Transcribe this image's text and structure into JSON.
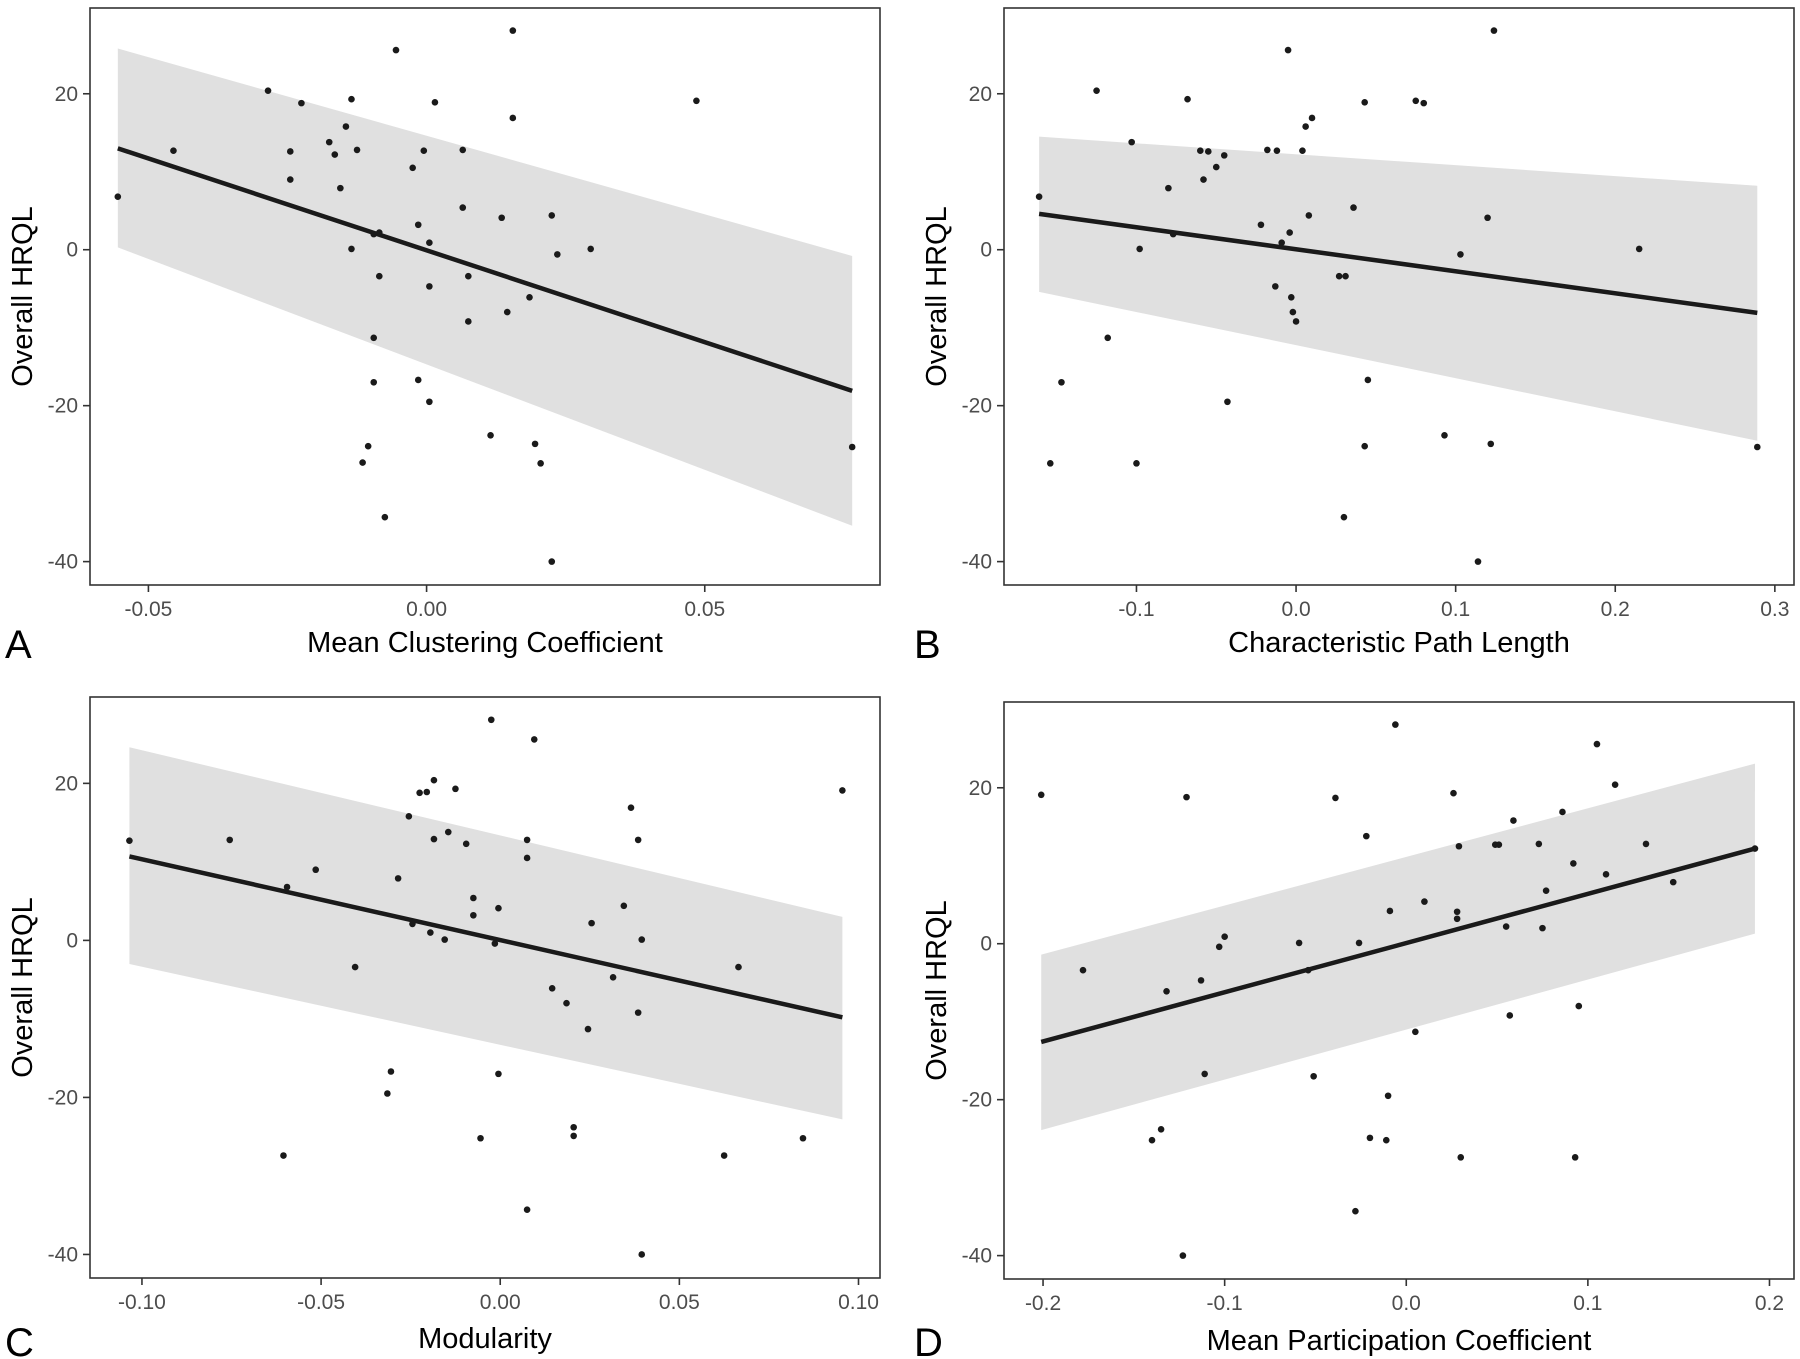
{
  "chart_data": [
    {
      "type": "scatter",
      "panel": "A",
      "xlabel": "Mean Clustering Coefficient",
      "ylabel": "Overall HRQL",
      "xlim": [
        -0.0605,
        0.0815
      ],
      "ylim": [
        -43,
        31
      ],
      "xticks": [
        -0.05,
        0.0,
        0.05
      ],
      "xtick_labels": [
        "-0.05",
        "0.00",
        "0.05"
      ],
      "yticks": [
        -40,
        -20,
        0,
        20
      ],
      "ytick_labels": [
        "-40",
        "-20",
        "0",
        "20"
      ],
      "grid": false,
      "fit": {
        "x": [
          -0.0555,
          0.0765
        ],
        "y": [
          13.0,
          -18.1
        ],
        "ci_lower": [
          0.3,
          -35.4
        ],
        "ci_upper": [
          25.8,
          -0.8
        ]
      },
      "points": [
        [
          -0.0555,
          6.8
        ],
        [
          -0.0455,
          12.7
        ],
        [
          -0.0285,
          20.4
        ],
        [
          -0.0245,
          9.0
        ],
        [
          -0.0245,
          12.6
        ],
        [
          -0.0225,
          18.8
        ],
        [
          -0.0175,
          13.8
        ],
        [
          -0.0165,
          12.2
        ],
        [
          -0.0155,
          7.9
        ],
        [
          -0.0145,
          15.8
        ],
        [
          -0.0135,
          19.3
        ],
        [
          -0.0135,
          0.1
        ],
        [
          -0.0125,
          12.8
        ],
        [
          -0.0115,
          -27.3
        ],
        [
          -0.0105,
          -25.2
        ],
        [
          -0.0095,
          -17.0
        ],
        [
          -0.0095,
          -11.3
        ],
        [
          -0.0095,
          2.0
        ],
        [
          -0.0085,
          -3.4
        ],
        [
          -0.0085,
          2.2
        ],
        [
          -0.0075,
          -34.3
        ],
        [
          -0.0055,
          25.6
        ],
        [
          -0.0025,
          10.5
        ],
        [
          -0.0015,
          3.2
        ],
        [
          -0.0015,
          -16.7
        ],
        [
          -0.0005,
          12.7
        ],
        [
          0.0005,
          -19.5
        ],
        [
          0.0005,
          0.9
        ],
        [
          0.0015,
          18.9
        ],
        [
          0.0005,
          -4.7
        ],
        [
          0.0065,
          12.8
        ],
        [
          0.0065,
          5.4
        ],
        [
          0.0075,
          -9.2
        ],
        [
          0.0075,
          -3.4
        ],
        [
          0.0115,
          -23.8
        ],
        [
          0.0135,
          4.1
        ],
        [
          0.0145,
          -8.0
        ],
        [
          0.0155,
          16.9
        ],
        [
          0.0155,
          28.1
        ],
        [
          0.0185,
          -6.1
        ],
        [
          0.0195,
          -24.9
        ],
        [
          0.0205,
          -27.4
        ],
        [
          0.0225,
          4.4
        ],
        [
          0.0225,
          -40.0
        ],
        [
          0.0235,
          -0.6
        ],
        [
          0.0295,
          0.1
        ],
        [
          0.0485,
          19.1
        ],
        [
          0.0765,
          -25.3
        ]
      ]
    },
    {
      "type": "scatter",
      "panel": "B",
      "xlabel": "Characteristic Path Length",
      "ylabel": "Overall HRQL",
      "xlim": [
        -0.183,
        0.312
      ],
      "ylim": [
        -43,
        31
      ],
      "xticks": [
        -0.1,
        0.0,
        0.1,
        0.2,
        0.3
      ],
      "xtick_labels": [
        "-0.1",
        "0.0",
        "0.1",
        "0.2",
        "0.3"
      ],
      "yticks": [
        -40,
        -20,
        0,
        20
      ],
      "ytick_labels": [
        "-40",
        "-20",
        "0",
        "20"
      ],
      "grid": false,
      "fit": {
        "x": [
          -0.161,
          0.289
        ],
        "y": [
          4.6,
          -8.1
        ],
        "ci_lower": [
          -5.4,
          -24.5
        ],
        "ci_upper": [
          14.5,
          8.2
        ]
      },
      "points": [
        [
          -0.161,
          6.8
        ],
        [
          -0.154,
          -27.4
        ],
        [
          -0.147,
          -17.0
        ],
        [
          -0.125,
          20.4
        ],
        [
          -0.118,
          -11.3
        ],
        [
          -0.103,
          13.8
        ],
        [
          -0.1,
          -27.4
        ],
        [
          -0.098,
          0.1
        ],
        [
          -0.08,
          7.9
        ],
        [
          -0.077,
          2.0
        ],
        [
          -0.068,
          19.3
        ],
        [
          -0.06,
          12.7
        ],
        [
          -0.058,
          9.0
        ],
        [
          -0.055,
          12.6
        ],
        [
          -0.05,
          10.6
        ],
        [
          -0.045,
          12.1
        ],
        [
          -0.043,
          -19.5
        ],
        [
          -0.022,
          3.2
        ],
        [
          -0.018,
          12.8
        ],
        [
          -0.013,
          -4.7
        ],
        [
          -0.012,
          12.7
        ],
        [
          -0.009,
          0.9
        ],
        [
          -0.005,
          25.6
        ],
        [
          -0.004,
          2.2
        ],
        [
          -0.003,
          -6.1
        ],
        [
          -0.002,
          -8.0
        ],
        [
          0.0,
          -9.2
        ],
        [
          0.004,
          12.7
        ],
        [
          0.006,
          15.8
        ],
        [
          0.008,
          4.4
        ],
        [
          0.01,
          16.9
        ],
        [
          0.027,
          -3.4
        ],
        [
          0.03,
          -34.3
        ],
        [
          0.031,
          -3.4
        ],
        [
          0.036,
          5.4
        ],
        [
          0.043,
          18.9
        ],
        [
          0.043,
          -25.2
        ],
        [
          0.045,
          -16.7
        ],
        [
          0.075,
          19.1
        ],
        [
          0.08,
          18.8
        ],
        [
          0.093,
          -23.8
        ],
        [
          0.103,
          -0.6
        ],
        [
          0.114,
          -40.0
        ],
        [
          0.12,
          4.1
        ],
        [
          0.122,
          -24.9
        ],
        [
          0.124,
          28.1
        ],
        [
          0.215,
          0.1
        ],
        [
          0.289,
          -25.3
        ]
      ]
    },
    {
      "type": "scatter",
      "panel": "C",
      "xlabel": "Modularity",
      "ylabel": "Overall HRQL",
      "xlim": [
        -0.1145,
        0.106
      ],
      "ylim": [
        -43,
        31
      ],
      "xticks": [
        -0.1,
        -0.05,
        0.0,
        0.05,
        0.1
      ],
      "xtick_labels": [
        "-0.10",
        "-0.05",
        "0.00",
        "0.05",
        "0.10"
      ],
      "yticks": [
        -40,
        -20,
        0,
        20
      ],
      "ytick_labels": [
        "-40",
        "-20",
        "0",
        "20"
      ],
      "grid": false,
      "fit": {
        "x": [
          -0.1035,
          0.0955
        ],
        "y": [
          10.7,
          -9.8
        ],
        "ci_lower": [
          -3.0,
          -22.8
        ],
        "ci_upper": [
          24.6,
          3.0
        ]
      },
      "points": [
        [
          -0.1035,
          12.7
        ],
        [
          -0.0755,
          12.8
        ],
        [
          -0.0595,
          6.8
        ],
        [
          -0.0605,
          -27.4
        ],
        [
          -0.0515,
          9.0
        ],
        [
          -0.0405,
          -3.4
        ],
        [
          -0.0305,
          -16.7
        ],
        [
          -0.0315,
          -19.5
        ],
        [
          -0.0285,
          7.9
        ],
        [
          -0.0255,
          15.8
        ],
        [
          -0.0245,
          2.1
        ],
        [
          -0.0225,
          18.8
        ],
        [
          -0.0205,
          18.9
        ],
        [
          -0.0195,
          1.0
        ],
        [
          -0.0185,
          12.9
        ],
        [
          -0.0185,
          20.4
        ],
        [
          -0.0155,
          0.1
        ],
        [
          -0.0145,
          13.8
        ],
        [
          -0.0125,
          19.3
        ],
        [
          -0.0095,
          12.3
        ],
        [
          -0.0075,
          5.4
        ],
        [
          -0.0075,
          3.2
        ],
        [
          -0.0055,
          -25.2
        ],
        [
          -0.0025,
          28.1
        ],
        [
          -0.0015,
          -0.4
        ],
        [
          -0.0005,
          -17.0
        ],
        [
          -0.0005,
          4.1
        ],
        [
          0.0075,
          12.8
        ],
        [
          0.0075,
          10.5
        ],
        [
          0.0075,
          -34.3
        ],
        [
          0.0095,
          25.6
        ],
        [
          0.0145,
          -6.1
        ],
        [
          0.0185,
          -8.0
        ],
        [
          0.0205,
          -23.8
        ],
        [
          0.0205,
          -24.9
        ],
        [
          0.0245,
          -11.3
        ],
        [
          0.0255,
          2.2
        ],
        [
          0.0315,
          -4.7
        ],
        [
          0.0345,
          4.4
        ],
        [
          0.0365,
          16.9
        ],
        [
          0.0385,
          12.8
        ],
        [
          0.0385,
          -9.2
        ],
        [
          0.0395,
          0.1
        ],
        [
          0.0395,
          -40.0
        ],
        [
          0.0625,
          -27.4
        ],
        [
          0.0665,
          -3.4
        ],
        [
          0.0845,
          -25.2
        ],
        [
          0.0955,
          19.1
        ]
      ]
    },
    {
      "type": "scatter",
      "panel": "D",
      "xlabel": "Mean Participation Coefficient",
      "ylabel": "Overall HRQL",
      "xlim": [
        -0.2215,
        0.2135
      ],
      "ylim": [
        -43,
        31
      ],
      "xticks": [
        -0.2,
        -0.1,
        0.0,
        0.1,
        0.2
      ],
      "xtick_labels": [
        "-0.2",
        "-0.1",
        "0.0",
        "0.1",
        "0.2"
      ],
      "yticks": [
        -40,
        -20,
        0,
        20
      ],
      "ytick_labels": [
        "-40",
        "-20",
        "0",
        "20"
      ],
      "grid": false,
      "fit": {
        "x": [
          -0.201,
          0.192
        ],
        "y": [
          -12.6,
          12.2
        ],
        "ci_lower": [
          -23.9,
          1.3
        ],
        "ci_upper": [
          -1.4,
          23.1
        ]
      },
      "points": [
        [
          -0.201,
          19.1
        ],
        [
          -0.178,
          -3.4
        ],
        [
          -0.14,
          -25.2
        ],
        [
          -0.135,
          -23.8
        ],
        [
          -0.132,
          -6.1
        ],
        [
          -0.123,
          -40.0
        ],
        [
          -0.121,
          18.8
        ],
        [
          -0.113,
          -4.7
        ],
        [
          -0.111,
          -16.7
        ],
        [
          -0.103,
          -0.4
        ],
        [
          -0.1,
          0.9
        ],
        [
          -0.059,
          0.1
        ],
        [
          -0.054,
          -3.4
        ],
        [
          -0.051,
          -17.0
        ],
        [
          -0.039,
          18.7
        ],
        [
          -0.028,
          -34.3
        ],
        [
          -0.026,
          0.1
        ],
        [
          -0.022,
          13.8
        ],
        [
          -0.02,
          -24.9
        ],
        [
          -0.011,
          -25.2
        ],
        [
          -0.01,
          -19.5
        ],
        [
          -0.009,
          4.2
        ],
        [
          -0.006,
          28.1
        ],
        [
          0.005,
          -11.3
        ],
        [
          0.01,
          5.4
        ],
        [
          0.026,
          19.3
        ],
        [
          0.028,
          4.1
        ],
        [
          0.028,
          3.2
        ],
        [
          0.029,
          12.5
        ],
        [
          0.03,
          -27.4
        ],
        [
          0.049,
          12.7
        ],
        [
          0.051,
          12.7
        ],
        [
          0.055,
          2.2
        ],
        [
          0.057,
          -9.2
        ],
        [
          0.059,
          15.8
        ],
        [
          0.073,
          12.8
        ],
        [
          0.075,
          2.0
        ],
        [
          0.077,
          6.8
        ],
        [
          0.086,
          16.9
        ],
        [
          0.092,
          10.3
        ],
        [
          0.093,
          -27.4
        ],
        [
          0.095,
          -8.0
        ],
        [
          0.105,
          25.6
        ],
        [
          0.11,
          8.9
        ],
        [
          0.115,
          20.4
        ],
        [
          0.132,
          12.8
        ],
        [
          0.147,
          7.9
        ],
        [
          0.192,
          12.2
        ]
      ]
    }
  ]
}
